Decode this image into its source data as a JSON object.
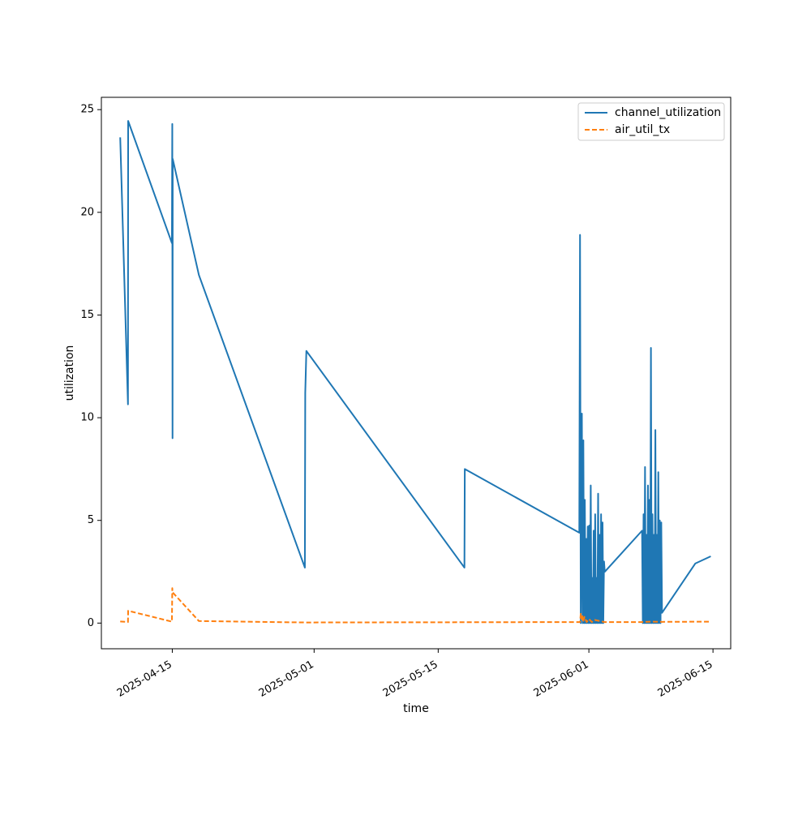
{
  "chart_data": {
    "type": "line",
    "title": "",
    "xlabel": "time",
    "ylabel": "utilization",
    "x_axis": "date",
    "xlim": [
      "2025-04-07",
      "2025-06-17"
    ],
    "ylim": [
      -1.25,
      25.6
    ],
    "xticks": [
      "2025-04-15",
      "2025-05-01",
      "2025-05-15",
      "2025-06-01",
      "2025-06-15"
    ],
    "yticks": [
      0,
      5,
      10,
      15,
      20,
      25
    ],
    "grid": false,
    "legend_position": "top-right",
    "series": [
      {
        "name": "channel_utilization",
        "color": "#1f77b4",
        "style": "solid",
        "points": [
          [
            "2025-04-09T03:00",
            23.65
          ],
          [
            "2025-04-10T00:00",
            10.65
          ],
          [
            "2025-04-10T00:30",
            24.45
          ],
          [
            "2025-04-14T23:00",
            18.5
          ],
          [
            "2025-04-15T00:00",
            24.3
          ],
          [
            "2025-04-15T00:40",
            9.0
          ],
          [
            "2025-04-15T01:10",
            22.6
          ],
          [
            "2025-04-18T00:00",
            16.95
          ],
          [
            "2025-04-29T23:00",
            2.7
          ],
          [
            "2025-04-30T00:00",
            11.2
          ],
          [
            "2025-04-30T03:00",
            13.25
          ],
          [
            "2025-05-17T23:00",
            2.7
          ],
          [
            "2025-05-18T00:00",
            7.5
          ],
          [
            "2025-05-30T22:00",
            4.4
          ],
          [
            "2025-05-31T00:00",
            18.9
          ],
          [
            "2025-05-31T02:00",
            0.0
          ],
          [
            "2025-05-31T05:00",
            10.2
          ],
          [
            "2025-05-31T07:00",
            0.0
          ],
          [
            "2025-05-31T09:00",
            8.9
          ],
          [
            "2025-05-31T11:00",
            0.0
          ],
          [
            "2025-05-31T13:00",
            6.0
          ],
          [
            "2025-05-31T15:00",
            0.0
          ],
          [
            "2025-05-31T17:00",
            4.1
          ],
          [
            "2025-05-31T19:00",
            0.0
          ],
          [
            "2025-05-31T21:00",
            4.7
          ],
          [
            "2025-05-31T23:00",
            0.0
          ],
          [
            "2025-06-01T01:00",
            4.75
          ],
          [
            "2025-06-01T03:00",
            0.0
          ],
          [
            "2025-06-01T05:00",
            6.7
          ],
          [
            "2025-06-01T07:00",
            0.0
          ],
          [
            "2025-06-01T09:00",
            2.2
          ],
          [
            "2025-06-01T11:00",
            0.0
          ],
          [
            "2025-06-01T13:00",
            4.5
          ],
          [
            "2025-06-01T15:00",
            0.0
          ],
          [
            "2025-06-01T17:00",
            5.3
          ],
          [
            "2025-06-01T19:00",
            0.0
          ],
          [
            "2025-06-01T21:00",
            2.2
          ],
          [
            "2025-06-01T23:00",
            0.0
          ],
          [
            "2025-06-02T01:00",
            6.3
          ],
          [
            "2025-06-02T03:00",
            0.0
          ],
          [
            "2025-06-02T05:00",
            4.3
          ],
          [
            "2025-06-02T07:00",
            0.0
          ],
          [
            "2025-06-02T09:00",
            5.3
          ],
          [
            "2025-06-02T11:00",
            0.0
          ],
          [
            "2025-06-02T13:00",
            4.9
          ],
          [
            "2025-06-02T15:00",
            0.0
          ],
          [
            "2025-06-02T17:00",
            3.0
          ],
          [
            "2025-06-02T19:00",
            2.5
          ],
          [
            "2025-06-07T00:00",
            4.5
          ],
          [
            "2025-06-07T02:00",
            0.0
          ],
          [
            "2025-06-07T04:00",
            5.3
          ],
          [
            "2025-06-07T06:00",
            0.0
          ],
          [
            "2025-06-07T08:00",
            7.6
          ],
          [
            "2025-06-07T10:00",
            0.0
          ],
          [
            "2025-06-07T12:00",
            4.3
          ],
          [
            "2025-06-07T14:00",
            0.0
          ],
          [
            "2025-06-07T16:00",
            6.7
          ],
          [
            "2025-06-07T18:00",
            0.0
          ],
          [
            "2025-06-07T20:00",
            6.0
          ],
          [
            "2025-06-07T22:00",
            0.0
          ],
          [
            "2025-06-08T00:00",
            13.4
          ],
          [
            "2025-06-08T02:00",
            0.0
          ],
          [
            "2025-06-08T04:00",
            5.3
          ],
          [
            "2025-06-08T06:00",
            0.0
          ],
          [
            "2025-06-08T08:00",
            4.3
          ],
          [
            "2025-06-08T10:00",
            0.0
          ],
          [
            "2025-06-08T12:00",
            9.4
          ],
          [
            "2025-06-08T14:00",
            0.0
          ],
          [
            "2025-06-08T16:00",
            4.3
          ],
          [
            "2025-06-08T18:00",
            0.0
          ],
          [
            "2025-06-08T20:00",
            7.35
          ],
          [
            "2025-06-08T22:00",
            0.0
          ],
          [
            "2025-06-09T00:00",
            5.0
          ],
          [
            "2025-06-09T02:00",
            0.0
          ],
          [
            "2025-06-09T04:00",
            4.9
          ],
          [
            "2025-06-09T06:00",
            0.5
          ],
          [
            "2025-06-13T00:00",
            2.9
          ],
          [
            "2025-06-14T18:00",
            3.25
          ]
        ]
      },
      {
        "name": "air_util_tx",
        "color": "#ff7f0e",
        "style": "dashed",
        "points": [
          [
            "2025-04-09T03:00",
            0.08
          ],
          [
            "2025-04-10T00:00",
            0.05
          ],
          [
            "2025-04-10T00:30",
            0.6
          ],
          [
            "2025-04-14T23:00",
            0.07
          ],
          [
            "2025-04-15T00:00",
            1.7
          ],
          [
            "2025-04-15T00:40",
            1.5
          ],
          [
            "2025-04-18T00:00",
            0.1
          ],
          [
            "2025-04-30T00:00",
            0.03
          ],
          [
            "2025-05-31T00:00",
            0.05
          ],
          [
            "2025-05-31T02:00",
            0.45
          ],
          [
            "2025-05-31T04:00",
            0.2
          ],
          [
            "2025-05-31T06:00",
            0.4
          ],
          [
            "2025-05-31T08:00",
            0.05
          ],
          [
            "2025-05-31T12:00",
            0.3
          ],
          [
            "2025-05-31T18:00",
            0.05
          ],
          [
            "2025-06-01T00:00",
            0.2
          ],
          [
            "2025-06-01T08:00",
            0.05
          ],
          [
            "2025-06-01T16:00",
            0.15
          ],
          [
            "2025-06-02T18:00",
            0.05
          ],
          [
            "2025-06-07T00:00",
            0.05
          ],
          [
            "2025-06-08T00:00",
            0.07
          ],
          [
            "2025-06-09T06:00",
            0.06
          ],
          [
            "2025-06-14T18:00",
            0.07
          ]
        ]
      }
    ]
  }
}
